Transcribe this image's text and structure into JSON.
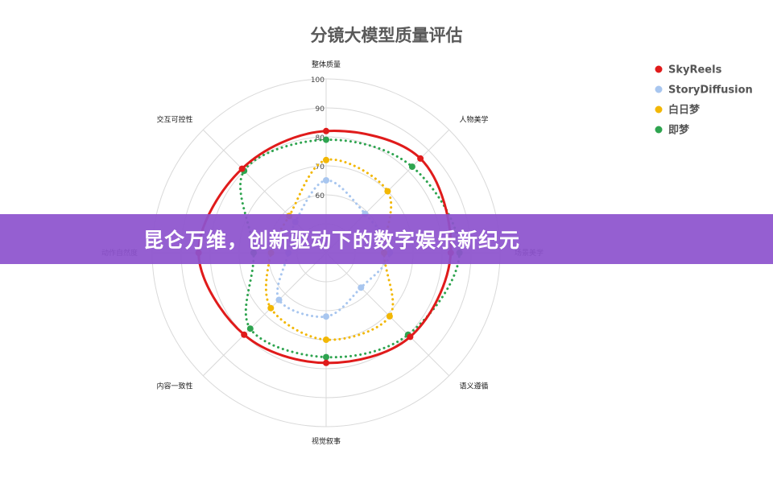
{
  "chart_data": {
    "type": "radar",
    "title": "分镜大模型质量评估",
    "axes": [
      "整体质量",
      "人物美学",
      "场景美学",
      "语义遵循",
      "视觉叙事",
      "内容一致性",
      "动作自然度",
      "交互可控性"
    ],
    "r_range": [
      40,
      100
    ],
    "ticks": [
      "60",
      "70",
      "80",
      "90",
      "100"
    ],
    "grid": true,
    "legend_position": "top-right",
    "series": [
      {
        "name": "SkyReels",
        "color": "#e01b1b",
        "line": "solid",
        "values": [
          82,
          86,
          83,
          81,
          78,
          80,
          84,
          81
        ]
      },
      {
        "name": "StoryDiffusion",
        "color": "#a8c6ef",
        "line": "dotted",
        "values": [
          65,
          59,
          62,
          57,
          62,
          63,
          53,
          55
        ]
      },
      {
        "name": "白日梦",
        "color": "#f2b705",
        "line": "dotted",
        "values": [
          72,
          70,
          60,
          71,
          70,
          67,
          59,
          58
        ]
      },
      {
        "name": "即梦",
        "color": "#2ea44f",
        "line": "dotted",
        "values": [
          79,
          82,
          86,
          80,
          76,
          77,
          65,
          80
        ]
      }
    ]
  },
  "banner": {
    "text": "昆仑万维，创新驱动下的数字娱乐新纪元"
  }
}
